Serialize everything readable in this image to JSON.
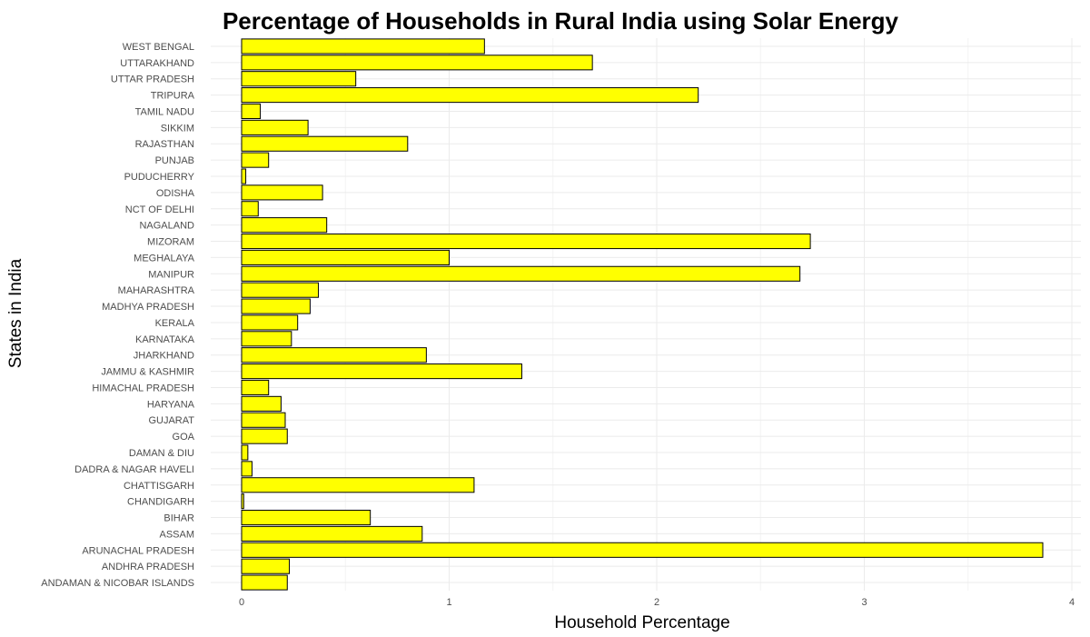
{
  "chart_data": {
    "type": "bar",
    "orientation": "horizontal",
    "title": "Percentage of Households in Rural India using Solar Energy",
    "xlabel": "Household Percentage",
    "ylabel": "States in India",
    "xlim": [
      0,
      4
    ],
    "x_ticks": [
      "0",
      "1",
      "2",
      "3",
      "4"
    ],
    "grid": true,
    "bar_fill": "#ffff00",
    "bar_stroke": "#000000",
    "categories": [
      "ANDAMAN & NICOBAR ISLANDS",
      "ANDHRA PRADESH",
      "ARUNACHAL PRADESH",
      "ASSAM",
      "BIHAR",
      "CHANDIGARH",
      "CHATTISGARH",
      "DADRA & NAGAR HAVELI",
      "DAMAN & DIU",
      "GOA",
      "GUJARAT",
      "HARYANA",
      "HIMACHAL PRADESH",
      "JAMMU & KASHMIR",
      "JHARKHAND",
      "KARNATAKA",
      "KERALA",
      "MADHYA PRADESH",
      "MAHARASHTRA",
      "MANIPUR",
      "MEGHALAYA",
      "MIZORAM",
      "NAGALAND",
      "NCT OF DELHI",
      "ODISHA",
      "PUDUCHERRY",
      "PUNJAB",
      "RAJASTHAN",
      "SIKKIM",
      "TAMIL NADU",
      "TRIPURA",
      "UTTAR PRADESH",
      "UTTARAKHAND",
      "WEST BENGAL"
    ],
    "values": [
      0.22,
      0.23,
      3.86,
      0.87,
      0.62,
      0.01,
      1.12,
      0.05,
      0.03,
      0.22,
      0.21,
      0.19,
      0.13,
      1.35,
      0.89,
      0.24,
      0.27,
      0.33,
      0.37,
      2.69,
      1.0,
      2.74,
      0.41,
      0.08,
      0.39,
      0.02,
      0.13,
      0.8,
      0.32,
      0.09,
      2.2,
      0.55,
      1.69,
      1.17
    ]
  }
}
